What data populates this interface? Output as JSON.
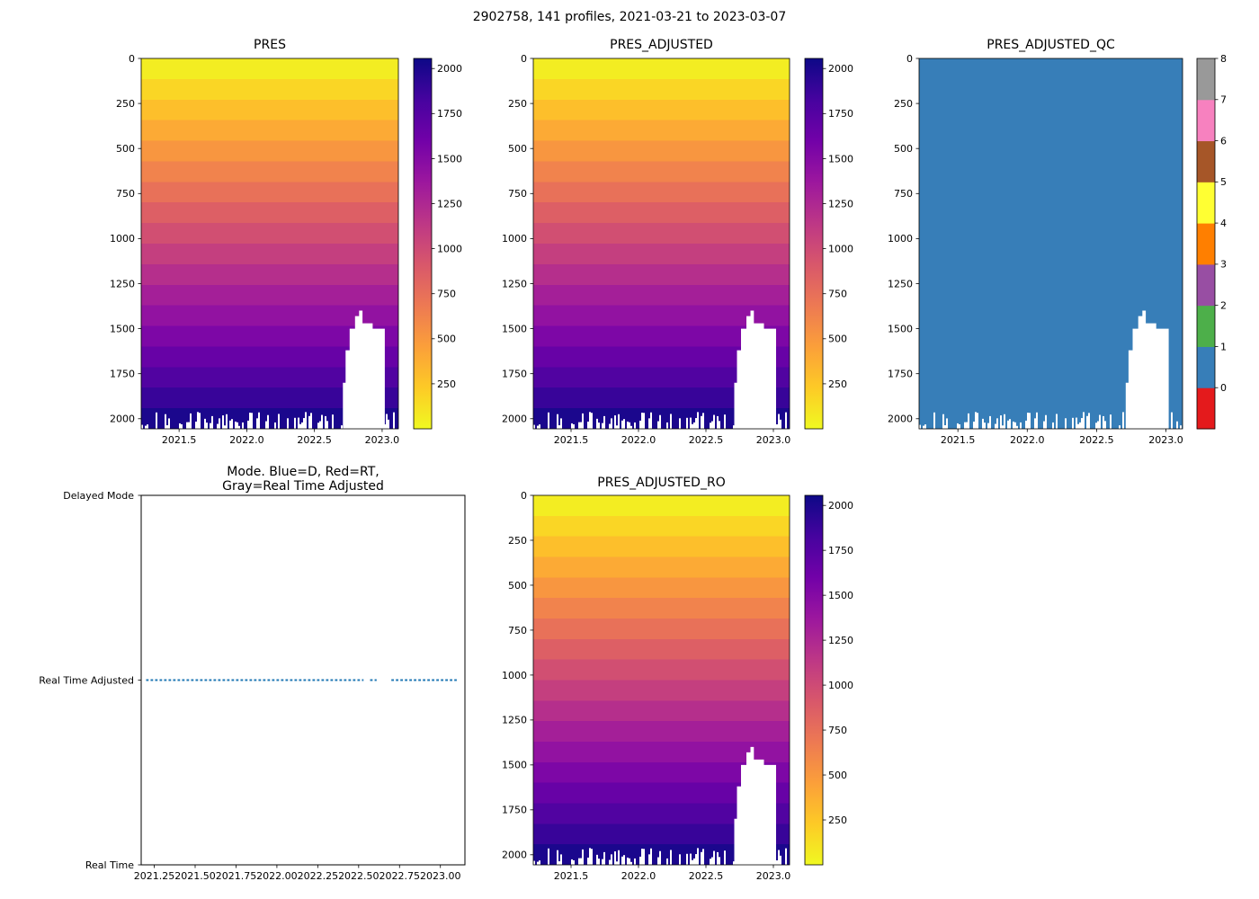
{
  "figure": {
    "title": "2902758, 141 profiles, 2021-03-21 to 2023-03-07",
    "background": "#ffffff"
  },
  "colors": {
    "plasma_stops": [
      "#0d0887",
      "#46039f",
      "#7201a8",
      "#9c179e",
      "#bd3786",
      "#d8576b",
      "#ed7953",
      "#fb9f3a",
      "#fdca26",
      "#f0f921"
    ],
    "qc_palette": [
      "#e41a1c",
      "#377eb8",
      "#4daf4a",
      "#984ea3",
      "#ff7f00",
      "#ffff33",
      "#a65628",
      "#f781bf",
      "#999999"
    ],
    "qc_fill": "#377eb8",
    "mode_line": "#1f77b4",
    "missing": "#ffffff",
    "axis_text": "#000000"
  },
  "panels": {
    "pres": {
      "title": "PRES"
    },
    "pres_adjusted": {
      "title": "PRES_ADJUSTED"
    },
    "pres_adjusted_qc": {
      "title": "PRES_ADJUSTED_QC"
    },
    "mode": {
      "title_line1": "Mode. Blue=D, Red=RT,",
      "title_line2": "Gray=Real Time Adjusted"
    },
    "pres_adjusted_ro": {
      "title": "PRES_ADJUSTED_RO"
    }
  },
  "chart_data": [
    {
      "type": "heatmap",
      "panel": "pres",
      "title": "PRES",
      "x_range": [
        2021.22,
        2023.12
      ],
      "x_ticks": [
        "2021.5",
        "2022.0",
        "2022.5",
        "2023.0"
      ],
      "y_range": [
        0,
        2056
      ],
      "y_ticks": [
        "0",
        "250",
        "500",
        "750",
        "1000",
        "1250",
        "1500",
        "1750",
        "2000"
      ],
      "colormap": "plasma reversed: yellow = low pressure at surface, dark navy = ~2050 dbar at depth",
      "n_levels": 18,
      "colorbar_ticks": [
        "250",
        "500",
        "750",
        "1000",
        "1250",
        "1500",
        "1750",
        "2000"
      ],
      "colorbar_range": [
        0,
        2056
      ],
      "values_description": "Pressure increases linearly with depth from 0 dbar at the surface to ~2050 dbar at the deepest sampled level; most profiles reach ~2000-2050 dbar with a ragged bottom edge",
      "missing_region": {
        "description": "profiles between ~2022.71 and ~2023.02 only reach ~1400-1500 dbar (white = no data)",
        "outline_year_depth": [
          [
            2022.71,
            2056
          ],
          [
            2022.71,
            1800
          ],
          [
            2022.73,
            1800
          ],
          [
            2022.73,
            1620
          ],
          [
            2022.76,
            1620
          ],
          [
            2022.76,
            1500
          ],
          [
            2022.8,
            1500
          ],
          [
            2022.8,
            1430
          ],
          [
            2022.83,
            1430
          ],
          [
            2022.83,
            1400
          ],
          [
            2022.855,
            1400
          ],
          [
            2022.855,
            1470
          ],
          [
            2022.93,
            1470
          ],
          [
            2022.93,
            1500
          ],
          [
            2023.02,
            1500
          ],
          [
            2023.02,
            2056
          ]
        ]
      }
    },
    {
      "type": "heatmap",
      "panel": "pres_adjusted",
      "title": "PRES_ADJUSTED",
      "x_range": [
        2021.22,
        2023.12
      ],
      "x_ticks": [
        "2021.5",
        "2022.0",
        "2022.5",
        "2023.0"
      ],
      "y_range": [
        0,
        2056
      ],
      "y_ticks": [
        "0",
        "250",
        "500",
        "750",
        "1000",
        "1250",
        "1500",
        "1750",
        "2000"
      ],
      "colormap": "plasma reversed: yellow = low pressure at surface, dark navy = ~2050 dbar at depth",
      "n_levels": 18,
      "colorbar_ticks": [
        "250",
        "500",
        "750",
        "1000",
        "1250",
        "1500",
        "1750",
        "2000"
      ],
      "colorbar_range": [
        0,
        2056
      ],
      "values_description": "Identical to PRES: pressure increases linearly with depth 0 to ~2050 dbar",
      "missing_region": {
        "description": "profiles between ~2022.71 and ~2023.02 only reach ~1400-1500 dbar (white = no data)",
        "outline_year_depth": [
          [
            2022.71,
            2056
          ],
          [
            2022.71,
            1800
          ],
          [
            2022.73,
            1800
          ],
          [
            2022.73,
            1620
          ],
          [
            2022.76,
            1620
          ],
          [
            2022.76,
            1500
          ],
          [
            2022.8,
            1500
          ],
          [
            2022.8,
            1430
          ],
          [
            2022.83,
            1430
          ],
          [
            2022.83,
            1400
          ],
          [
            2022.855,
            1400
          ],
          [
            2022.855,
            1470
          ],
          [
            2022.93,
            1470
          ],
          [
            2022.93,
            1500
          ],
          [
            2023.02,
            1500
          ],
          [
            2023.02,
            2056
          ]
        ]
      }
    },
    {
      "type": "heatmap",
      "panel": "pres_adjusted_qc",
      "title": "PRES_ADJUSTED_QC",
      "x_range": [
        2021.22,
        2023.12
      ],
      "x_ticks": [
        "2021.5",
        "2022.0",
        "2022.5",
        "2023.0"
      ],
      "y_range": [
        0,
        2056
      ],
      "y_ticks": [
        "0",
        "250",
        "500",
        "750",
        "1000",
        "1250",
        "1500",
        "1750",
        "2000"
      ],
      "uniform_value": 1,
      "values_description": "QC flag = 1 (light blue) everywhere data exists; same white missing notch and ragged bottom as PRES",
      "colorbar_ticks": [
        "0",
        "1",
        "2",
        "3",
        "4",
        "5",
        "6",
        "7",
        "8"
      ],
      "palette_legend": [
        "0 red",
        "1 blue",
        "2 green",
        "3 purple",
        "4 orange",
        "5 yellow",
        "6 brown",
        "7 pink",
        "8 gray"
      ],
      "missing_region": {
        "description": "profiles between ~2022.71 and ~2023.02 only reach ~1400-1500 dbar (white = no data)",
        "outline_year_depth": [
          [
            2022.71,
            2056
          ],
          [
            2022.71,
            1800
          ],
          [
            2022.73,
            1800
          ],
          [
            2022.73,
            1620
          ],
          [
            2022.76,
            1620
          ],
          [
            2022.76,
            1500
          ],
          [
            2022.8,
            1500
          ],
          [
            2022.8,
            1430
          ],
          [
            2022.83,
            1430
          ],
          [
            2022.83,
            1400
          ],
          [
            2022.855,
            1400
          ],
          [
            2022.855,
            1470
          ],
          [
            2022.93,
            1470
          ],
          [
            2022.93,
            1500
          ],
          [
            2023.02,
            1500
          ],
          [
            2023.02,
            2056
          ]
        ]
      }
    },
    {
      "type": "scatter",
      "panel": "mode",
      "title": "Mode. Blue=D, Red=RT, Gray=Real Time Adjusted",
      "x_range": [
        2021.17,
        2023.15
      ],
      "x_ticks": [
        "2021.25",
        "2021.50",
        "2021.75",
        "2022.00",
        "2022.25",
        "2022.50",
        "2022.75",
        "2023.00"
      ],
      "y_categories": [
        "Delayed Mode",
        "Real Time Adjusted",
        "Real Time"
      ],
      "series": [
        {
          "name": "profile-mode",
          "y_category": "Real Time Adjusted",
          "marker_color": "#1f77b4",
          "x_segments": [
            [
              2021.2,
              2022.53
            ],
            [
              2022.57,
              2022.61
            ],
            [
              2022.7,
              2023.1
            ]
          ],
          "description": "all 141 profiles plot at Real Time Adjusted; dense dot markers form a dashed-looking blue line with small gaps near 2022.55 and 2022.65"
        }
      ]
    },
    {
      "type": "heatmap",
      "panel": "pres_adjusted_ro",
      "title": "PRES_ADJUSTED_RO",
      "x_range": [
        2021.22,
        2023.12
      ],
      "x_ticks": [
        "2021.5",
        "2022.0",
        "2022.5",
        "2023.0"
      ],
      "y_range": [
        0,
        2056
      ],
      "y_ticks": [
        "0",
        "250",
        "500",
        "750",
        "1000",
        "1250",
        "1500",
        "1750",
        "2000"
      ],
      "colormap": "plasma reversed: yellow = low pressure at surface, dark navy = ~2050 dbar at depth",
      "n_levels": 18,
      "colorbar_ticks": [
        "250",
        "500",
        "750",
        "1000",
        "1250",
        "1500",
        "1750",
        "2000"
      ],
      "colorbar_range": [
        0,
        2056
      ],
      "values_description": "Identical to PRES: pressure increases linearly with depth 0 to ~2050 dbar",
      "missing_region": {
        "description": "profiles between ~2022.71 and ~2023.02 only reach ~1400-1500 dbar (white = no data)",
        "outline_year_depth": [
          [
            2022.71,
            2056
          ],
          [
            2022.71,
            1800
          ],
          [
            2022.73,
            1800
          ],
          [
            2022.73,
            1620
          ],
          [
            2022.76,
            1620
          ],
          [
            2022.76,
            1500
          ],
          [
            2022.8,
            1500
          ],
          [
            2022.8,
            1430
          ],
          [
            2022.83,
            1430
          ],
          [
            2022.83,
            1400
          ],
          [
            2022.855,
            1400
          ],
          [
            2022.855,
            1470
          ],
          [
            2022.93,
            1470
          ],
          [
            2022.93,
            1500
          ],
          [
            2023.02,
            1500
          ],
          [
            2023.02,
            2056
          ]
        ]
      }
    }
  ]
}
